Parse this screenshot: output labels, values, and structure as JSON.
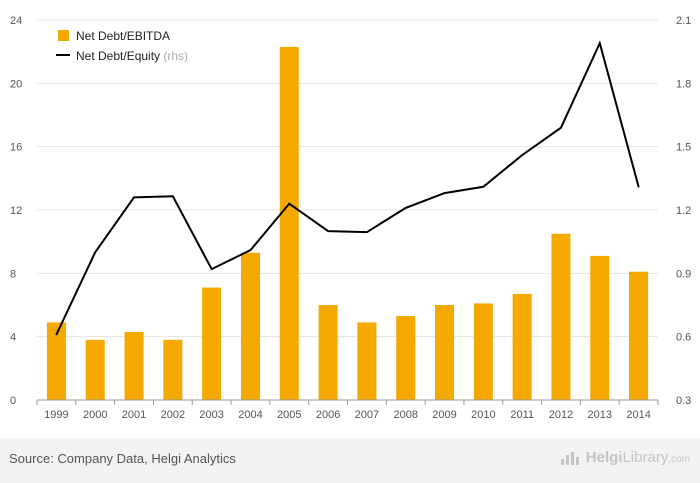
{
  "chart_data": {
    "type": "bar",
    "categories": [
      "1999",
      "2000",
      "2001",
      "2002",
      "2003",
      "2004",
      "2005",
      "2006",
      "2007",
      "2008",
      "2009",
      "2010",
      "2011",
      "2012",
      "2013",
      "2014"
    ],
    "series": [
      {
        "name": "Net Debt/EBITDA",
        "type": "bar",
        "axis": "left",
        "color": "#f5a800",
        "values": [
          4.9,
          3.8,
          4.3,
          3.8,
          7.1,
          9.3,
          22.3,
          6.0,
          4.9,
          5.3,
          6.0,
          6.1,
          6.7,
          10.5,
          9.1,
          8.1
        ]
      },
      {
        "name": "Net Debt/Equity",
        "note": "(rhs)",
        "type": "line",
        "axis": "right",
        "color": "#000000",
        "values": [
          0.61,
          1.0,
          1.26,
          1.265,
          0.92,
          1.01,
          1.23,
          1.1,
          1.095,
          1.21,
          1.28,
          1.31,
          1.46,
          1.59,
          1.99,
          1.31
        ]
      }
    ],
    "y_left": {
      "min": 0,
      "max": 24,
      "ticks": [
        0,
        4,
        8,
        12,
        16,
        20,
        24
      ]
    },
    "y_right": {
      "min": 0.3,
      "max": 2.1,
      "ticks": [
        "0.3",
        "0.6",
        "0.9",
        "1.2",
        "1.5",
        "1.8",
        "2.1"
      ]
    },
    "grid": true,
    "legend_position": "top-left"
  },
  "footer": {
    "source": "Source: Company Data, Helgi Analytics",
    "logo_part1": "Helgi",
    "logo_part2": "Library",
    "logo_suffix": ".com"
  }
}
